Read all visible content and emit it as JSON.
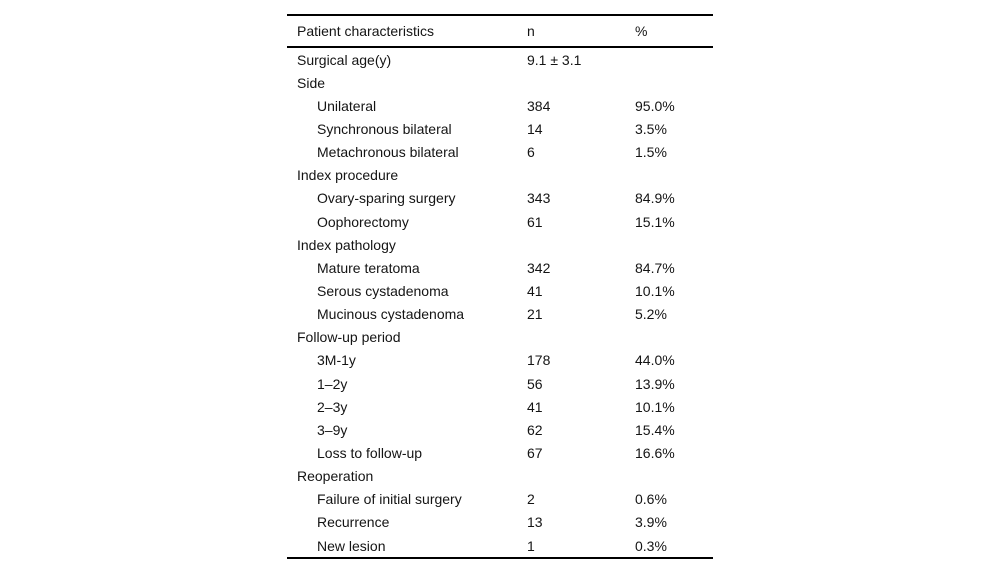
{
  "page": {
    "background": "#ffffff",
    "text_color": "#141414",
    "rule_color": "#000000"
  },
  "table": {
    "columns": [
      {
        "label": "Patient characteristics"
      },
      {
        "label": "n"
      },
      {
        "label": "%"
      }
    ],
    "rows": [
      {
        "label": "Surgical age(y)",
        "n": "9.1 ± 3.1",
        "pct": "",
        "indent": false
      },
      {
        "label": "Side",
        "n": "",
        "pct": "",
        "indent": false
      },
      {
        "label": "Unilateral",
        "n": "384",
        "pct": "95.0%",
        "indent": true
      },
      {
        "label": "Synchronous bilateral",
        "n": "14",
        "pct": "3.5%",
        "indent": true
      },
      {
        "label": "Metachronous bilateral",
        "n": "6",
        "pct": "1.5%",
        "indent": true
      },
      {
        "label": "Index procedure",
        "n": "",
        "pct": "",
        "indent": false
      },
      {
        "label": "Ovary-sparing surgery",
        "n": "343",
        "pct": "84.9%",
        "indent": true
      },
      {
        "label": "Oophorectomy",
        "n": "61",
        "pct": "15.1%",
        "indent": true
      },
      {
        "label": "Index pathology",
        "n": "",
        "pct": "",
        "indent": false
      },
      {
        "label": "Mature teratoma",
        "n": "342",
        "pct": "84.7%",
        "indent": true
      },
      {
        "label": "Serous cystadenoma",
        "n": "41",
        "pct": "10.1%",
        "indent": true
      },
      {
        "label": "Mucinous cystadenoma",
        "n": "21",
        "pct": "5.2%",
        "indent": true
      },
      {
        "label": "Follow-up period",
        "n": "",
        "pct": "",
        "indent": false
      },
      {
        "label": "3M-1y",
        "n": "178",
        "pct": "44.0%",
        "indent": true
      },
      {
        "label": "1–2y",
        "n": "56",
        "pct": "13.9%",
        "indent": true
      },
      {
        "label": "2–3y",
        "n": "41",
        "pct": "10.1%",
        "indent": true
      },
      {
        "label": "3–9y",
        "n": "62",
        "pct": "15.4%",
        "indent": true
      },
      {
        "label": "Loss to follow-up",
        "n": "67",
        "pct": "16.6%",
        "indent": true
      },
      {
        "label": "Reoperation",
        "n": "",
        "pct": "",
        "indent": false
      },
      {
        "label": "Failure of initial surgery",
        "n": "2",
        "pct": "0.6%",
        "indent": true
      },
      {
        "label": "Recurrence",
        "n": "13",
        "pct": "3.9%",
        "indent": true
      },
      {
        "label": "New lesion",
        "n": "1",
        "pct": "0.3%",
        "indent": true
      }
    ]
  }
}
